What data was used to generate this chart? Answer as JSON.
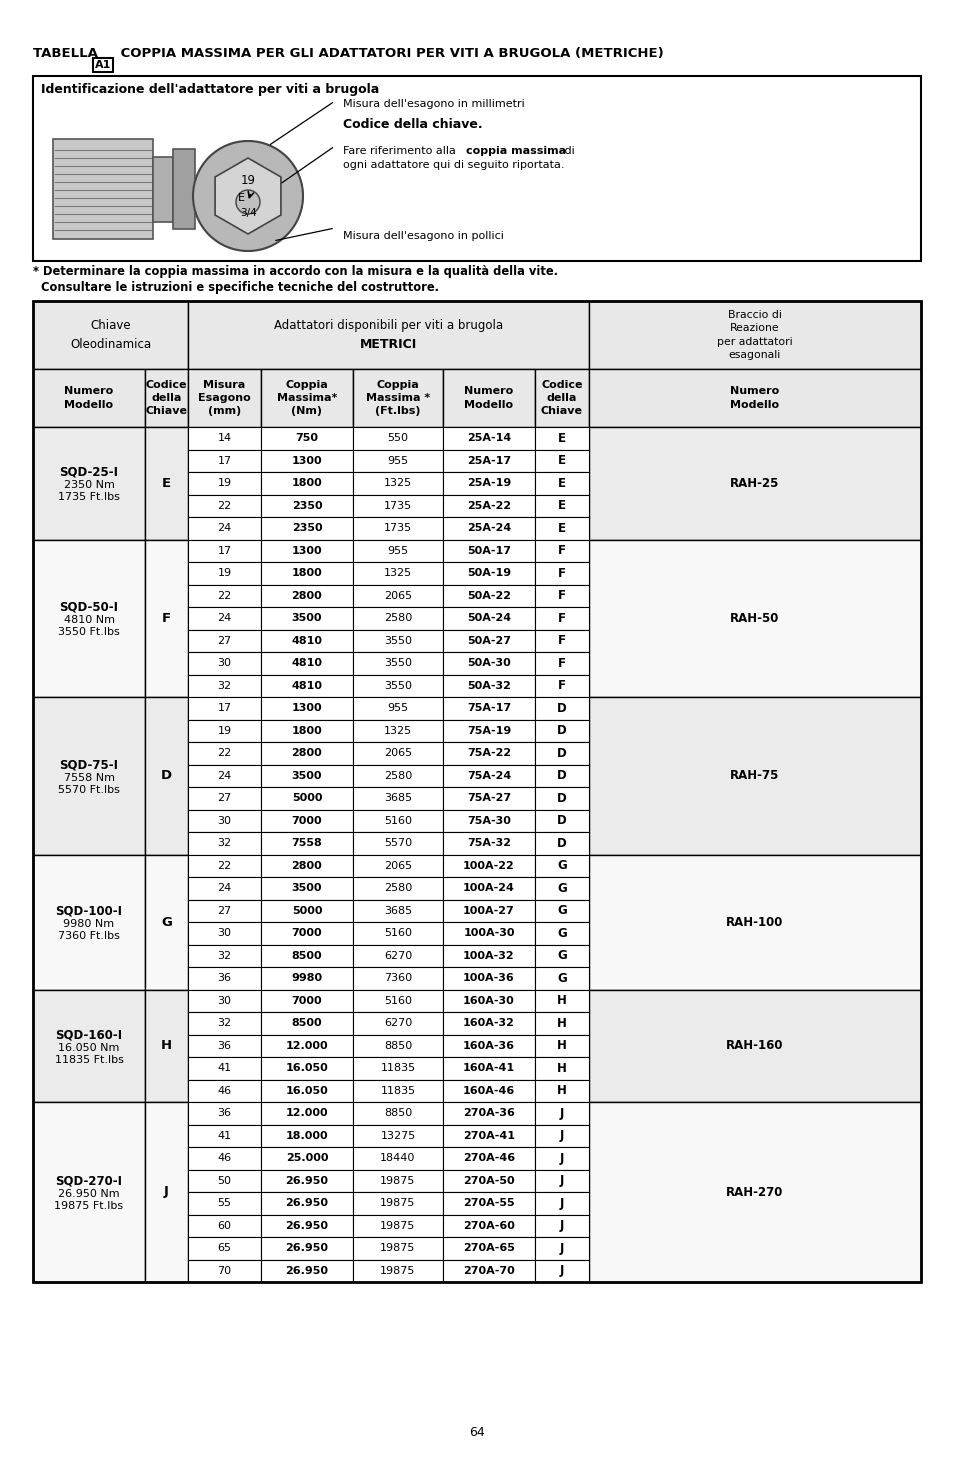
{
  "title_text": "TABELLA  A1  COPPIA MASSIMA PER GLI ADATTATORI PER VITI A BRUGOLA (METRICHE)",
  "diagram_title": "Identificazione dell'adattatore per viti a brugola",
  "ann_mm": "Misura dell'esagono in millimetri",
  "ann_codice_bold": "Codice della chiave.",
  "ann_fare1": "Fare riferimento alla ",
  "ann_fare_bold": "coppia massima",
  "ann_fare2": " di",
  "ann_fare3": "ogni adattatore qui di seguito riportata.",
  "ann_pollici": "Misura dell'esagono in pollici",
  "footnote1": "* Determinare la coppia massima in accordo con la misura e la qualità della vite.",
  "footnote2": "  Consultare le istruzioni e specifiche tecniche del costruttore.",
  "h1_left": "Chiave\nOleodinamica",
  "h1_mid1": "Adattatori disponibili per viti a brugola",
  "h1_mid2": "METRICI",
  "h1_right": "Braccio di\nReazione\nper adattatori\nesagonali",
  "h2_cols": [
    "Numero\nModello",
    "Codice\ndella\nChiave",
    "Misura\nEsagono\n(mm)",
    "Coppia\nMassima*\n(Nm)",
    "Coppia\nMassima *\n(Ft.lbs)",
    "Numero\nModello",
    "Codice\ndella\nChiave",
    "Numero\nModello"
  ],
  "sections": [
    {
      "model": "SQD-25-I",
      "nm": "2350 Nm",
      "ftlbs": "1735 Ft.lbs",
      "key_code": "E",
      "rah": "RAH-25",
      "rows": [
        [
          "14",
          "750",
          "550",
          "25A-14",
          "E",
          false,
          false
        ],
        [
          "17",
          "1300",
          "955",
          "25A-17",
          "E",
          false,
          false
        ],
        [
          "19",
          "1800",
          "1325",
          "25A-19",
          "E",
          false,
          false
        ],
        [
          "22",
          "2350",
          "1735",
          "25A-22",
          "E",
          true,
          false
        ],
        [
          "24",
          "2350",
          "1735",
          "25A-24",
          "E",
          true,
          false
        ]
      ]
    },
    {
      "model": "SQD-50-I",
      "nm": "4810 Nm",
      "ftlbs": "3550 Ft.lbs",
      "key_code": "F",
      "rah": "RAH-50",
      "rows": [
        [
          "17",
          "1300",
          "955",
          "50A-17",
          "F",
          false,
          false
        ],
        [
          "19",
          "1800",
          "1325",
          "50A-19",
          "F",
          false,
          false
        ],
        [
          "22",
          "2800",
          "2065",
          "50A-22",
          "F",
          false,
          false
        ],
        [
          "24",
          "3500",
          "2580",
          "50A-24",
          "F",
          false,
          false
        ],
        [
          "27",
          "4810",
          "3550",
          "50A-27",
          "F",
          true,
          false
        ],
        [
          "30",
          "4810",
          "3550",
          "50A-30",
          "F",
          true,
          false
        ],
        [
          "32",
          "4810",
          "3550",
          "50A-32",
          "F",
          true,
          false
        ]
      ]
    },
    {
      "model": "SQD-75-I",
      "nm": "7558 Nm",
      "ftlbs": "5570 Ft.lbs",
      "key_code": "D",
      "rah": "RAH-75",
      "rows": [
        [
          "17",
          "1300",
          "955",
          "75A-17",
          "D",
          false,
          false
        ],
        [
          "19",
          "1800",
          "1325",
          "75A-19",
          "D",
          false,
          false
        ],
        [
          "22",
          "2800",
          "2065",
          "75A-22",
          "D",
          false,
          false
        ],
        [
          "24",
          "3500",
          "2580",
          "75A-24",
          "D",
          false,
          false
        ],
        [
          "27",
          "5000",
          "3685",
          "75A-27",
          "D",
          false,
          false
        ],
        [
          "30",
          "7000",
          "5160",
          "75A-30",
          "D",
          false,
          false
        ],
        [
          "32",
          "7558",
          "5570",
          "75A-32",
          "D",
          false,
          false
        ]
      ]
    },
    {
      "model": "SQD-100-I",
      "nm": "9980 Nm",
      "ftlbs": "7360 Ft.lbs",
      "key_code": "G",
      "rah": "RAH-100",
      "rows": [
        [
          "22",
          "2800",
          "2065",
          "100A-22",
          "G",
          false,
          false
        ],
        [
          "24",
          "3500",
          "2580",
          "100A-24",
          "G",
          false,
          false
        ],
        [
          "27",
          "5000",
          "3685",
          "100A-27",
          "G",
          false,
          false
        ],
        [
          "30",
          "7000",
          "5160",
          "100A-30",
          "G",
          false,
          false
        ],
        [
          "32",
          "8500",
          "6270",
          "100A-32",
          "G",
          false,
          false
        ],
        [
          "36",
          "9980",
          "7360",
          "100A-36",
          "G",
          false,
          false
        ]
      ]
    },
    {
      "model": "SQD-160-I",
      "nm": "16.050 Nm",
      "ftlbs": "11835 Ft.lbs",
      "key_code": "H",
      "rah": "RAH-160",
      "rows": [
        [
          "30",
          "7000",
          "5160",
          "160A-30",
          "H",
          false,
          false
        ],
        [
          "32",
          "8500",
          "6270",
          "160A-32",
          "H",
          false,
          false
        ],
        [
          "36",
          "12.000",
          "8850",
          "160A-36",
          "H",
          true,
          false
        ],
        [
          "41",
          "16.050",
          "11835",
          "160A-41",
          "H",
          true,
          false
        ],
        [
          "46",
          "16.050",
          "11835",
          "160A-46",
          "H",
          true,
          false
        ]
      ]
    },
    {
      "model": "SQD-270-I",
      "nm": "26.950 Nm",
      "ftlbs": "19875 Ft.lbs",
      "key_code": "J",
      "rah": "RAH-270",
      "rows": [
        [
          "36",
          "12.000",
          "8850",
          "270A-36",
          "J",
          true,
          false
        ],
        [
          "41",
          "18.000",
          "13275",
          "270A-41",
          "J",
          true,
          false
        ],
        [
          "46",
          "25.000",
          "18440",
          "270A-46",
          "J",
          true,
          false
        ],
        [
          "50",
          "26.950",
          "19875",
          "270A-50",
          "J",
          true,
          false
        ],
        [
          "55",
          "26.950",
          "19875",
          "270A-55",
          "J",
          true,
          false
        ],
        [
          "60",
          "26.950",
          "19875",
          "270A-60",
          "J",
          true,
          false
        ],
        [
          "65",
          "26.950",
          "19875",
          "270A-65",
          "J",
          true,
          false
        ],
        [
          "70",
          "26.950",
          "19875",
          "270A-70",
          "J",
          true,
          false
        ]
      ]
    }
  ],
  "page_number": "64",
  "bg_white": "#ffffff",
  "bg_gray": "#e8e8e8",
  "border": "#000000"
}
